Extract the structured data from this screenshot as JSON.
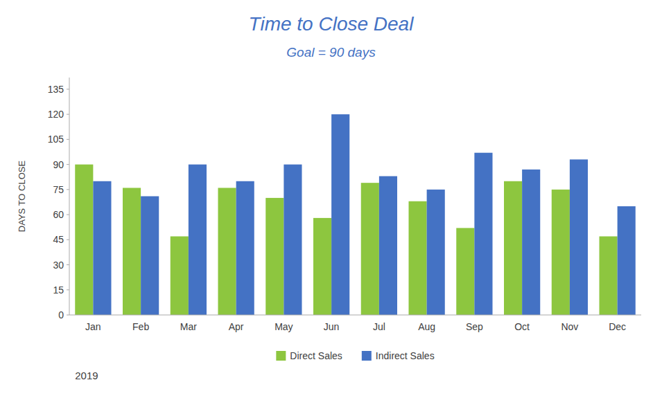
{
  "chart_data": {
    "type": "bar",
    "title": "Time to Close Deal",
    "subtitle": "Goal = 90 days",
    "xlabel": "2019",
    "ylabel": "DAYS TO CLOSE",
    "categories": [
      "Jan",
      "Feb",
      "Mar",
      "Apr",
      "May",
      "Jun",
      "Jul",
      "Aug",
      "Sep",
      "Oct",
      "Nov",
      "Dec"
    ],
    "series": [
      {
        "name": "Direct Sales",
        "color": "#8DC63F",
        "values": [
          90,
          76,
          47,
          76,
          70,
          58,
          79,
          68,
          52,
          80,
          75,
          47
        ]
      },
      {
        "name": "Indirect Sales",
        "color": "#4472C4",
        "values": [
          80,
          71,
          90,
          80,
          90,
          120,
          83,
          75,
          97,
          87,
          93,
          65
        ]
      }
    ],
    "ylim": [
      0,
      142
    ],
    "yticks": [
      0,
      15,
      30,
      45,
      60,
      75,
      90,
      105,
      120,
      135
    ],
    "grid": false,
    "legend": "bottom"
  }
}
